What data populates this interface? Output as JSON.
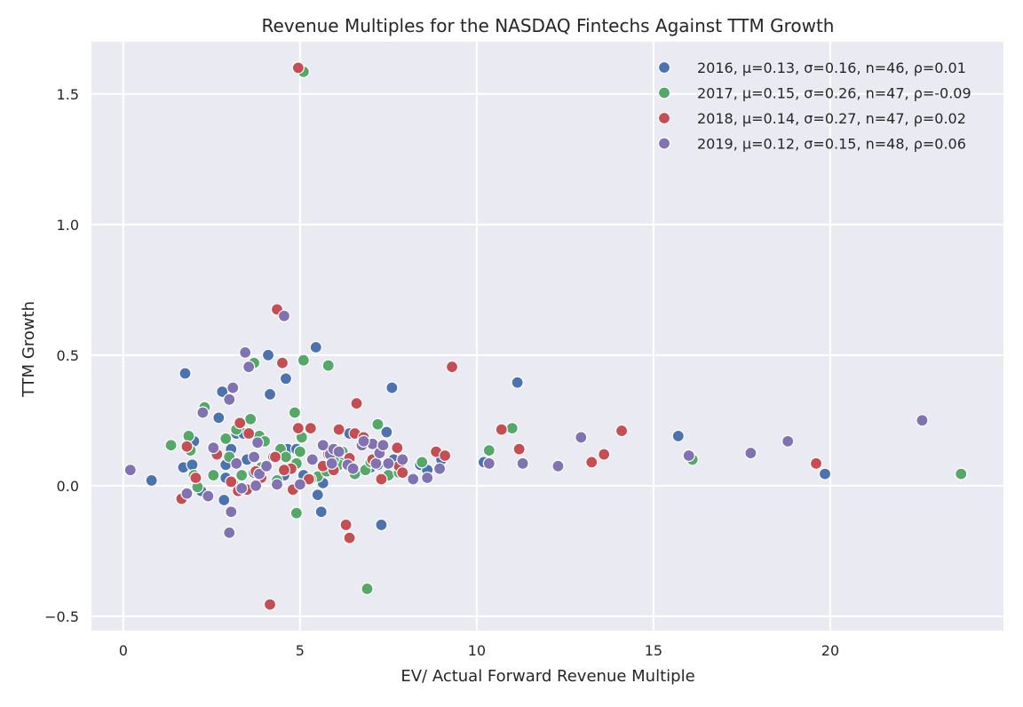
{
  "chart_data": {
    "type": "scatter",
    "title": "Revenue Multiples for the NASDAQ Fintechs Against TTM Growth",
    "xlabel": "EV/ Actual Forward Revenue Multiple",
    "ylabel": "TTM Growth",
    "xlim": [
      -0.9,
      24.9
    ],
    "ylim": [
      -0.555,
      1.7
    ],
    "x_ticks": [
      0,
      5,
      10,
      15,
      20
    ],
    "x_tick_labels": [
      "0",
      "5",
      "10",
      "15",
      "20"
    ],
    "y_ticks": [
      -0.5,
      0.0,
      0.5,
      1.0,
      1.5
    ],
    "y_tick_labels": [
      "−0.5",
      "0.0",
      "0.5",
      "1.0",
      "1.5"
    ],
    "grid": true,
    "legend_position": "top-right",
    "series": [
      {
        "name": "2016, μ=0.13, σ=0.16, n=46, ρ=0.01",
        "color": "#4c72b0",
        "points": [
          [
            0.8,
            0.02
          ],
          [
            1.7,
            0.07
          ],
          [
            1.75,
            0.43
          ],
          [
            1.95,
            0.08
          ],
          [
            2.0,
            0.17
          ],
          [
            2.2,
            -0.02
          ],
          [
            2.7,
            0.26
          ],
          [
            2.8,
            0.36
          ],
          [
            2.9,
            0.08
          ],
          [
            2.9,
            0.03
          ],
          [
            3.05,
            0.14
          ],
          [
            3.2,
            0.2
          ],
          [
            3.4,
            0.2
          ],
          [
            2.85,
            -0.055
          ],
          [
            3.5,
            0.1
          ],
          [
            3.7,
            0.05
          ],
          [
            4.1,
            0.5
          ],
          [
            4.15,
            0.35
          ],
          [
            4.25,
            0.11
          ],
          [
            4.5,
            0.12
          ],
          [
            4.55,
            0.04
          ],
          [
            4.6,
            0.41
          ],
          [
            4.65,
            0.14
          ],
          [
            4.9,
            0.14
          ],
          [
            5.1,
            0.04
          ],
          [
            5.45,
            0.53
          ],
          [
            5.5,
            -0.035
          ],
          [
            5.6,
            -0.1
          ],
          [
            5.65,
            0.01
          ],
          [
            6.0,
            0.07
          ],
          [
            6.4,
            0.2
          ],
          [
            6.6,
            0.05
          ],
          [
            7.0,
            0.07
          ],
          [
            7.2,
            0.08
          ],
          [
            7.3,
            -0.15
          ],
          [
            7.45,
            0.205
          ],
          [
            7.6,
            0.375
          ],
          [
            7.65,
            0.1
          ],
          [
            8.4,
            0.08
          ],
          [
            8.6,
            0.06
          ],
          [
            9.0,
            0.1
          ],
          [
            10.2,
            0.09
          ],
          [
            11.15,
            0.395
          ],
          [
            15.7,
            0.19
          ],
          [
            19.85,
            0.045
          ],
          [
            6.2,
            0.09
          ]
        ]
      },
      {
        "name": "2017, μ=0.15, σ=0.26, n=47, ρ=-0.09",
        "color": "#55a868",
        "points": [
          [
            1.35,
            0.155
          ],
          [
            1.85,
            0.19
          ],
          [
            1.9,
            0.135
          ],
          [
            2.0,
            0.04
          ],
          [
            2.3,
            0.3
          ],
          [
            2.55,
            0.04
          ],
          [
            2.9,
            0.18
          ],
          [
            3.1,
            0.01
          ],
          [
            3.2,
            0.215
          ],
          [
            3.35,
            0.04
          ],
          [
            3.6,
            0.255
          ],
          [
            3.7,
            0.47
          ],
          [
            3.85,
            0.19
          ],
          [
            4.0,
            0.17
          ],
          [
            4.45,
            0.14
          ],
          [
            4.6,
            0.11
          ],
          [
            4.85,
            0.28
          ],
          [
            4.9,
            0.085
          ],
          [
            4.9,
            -0.105
          ],
          [
            5.0,
            0.13
          ],
          [
            5.05,
            0.185
          ],
          [
            5.1,
            0.48
          ],
          [
            5.1,
            1.585
          ],
          [
            5.5,
            0.035
          ],
          [
            5.75,
            0.055
          ],
          [
            5.8,
            0.46
          ],
          [
            6.2,
            0.13
          ],
          [
            6.55,
            0.045
          ],
          [
            6.85,
            0.06
          ],
          [
            6.9,
            -0.395
          ],
          [
            7.2,
            0.235
          ],
          [
            7.5,
            0.04
          ],
          [
            8.45,
            0.09
          ],
          [
            10.35,
            0.135
          ],
          [
            11.0,
            0.22
          ],
          [
            16.1,
            0.1
          ],
          [
            23.7,
            0.045
          ],
          [
            5.3,
            0.025
          ],
          [
            6.1,
            0.08
          ],
          [
            7.8,
            0.05
          ],
          [
            3.9,
            0.07
          ],
          [
            2.1,
            -0.005
          ],
          [
            4.35,
            0.02
          ],
          [
            5.95,
            0.1
          ],
          [
            7.0,
            0.09
          ],
          [
            8.2,
            0.03
          ],
          [
            3.0,
            0.11
          ]
        ]
      },
      {
        "name": "2018, μ=0.14, σ=0.27, n=47, ρ=0.02",
        "color": "#c44e52",
        "points": [
          [
            1.65,
            -0.05
          ],
          [
            1.8,
            0.15
          ],
          [
            2.05,
            0.03
          ],
          [
            2.65,
            0.12
          ],
          [
            3.05,
            0.015
          ],
          [
            3.25,
            -0.02
          ],
          [
            3.3,
            0.24
          ],
          [
            3.5,
            -0.015
          ],
          [
            3.55,
            0.2
          ],
          [
            3.75,
            0.055
          ],
          [
            4.15,
            -0.455
          ],
          [
            4.3,
            0.11
          ],
          [
            4.35,
            0.675
          ],
          [
            4.5,
            0.47
          ],
          [
            4.75,
            0.065
          ],
          [
            4.8,
            -0.015
          ],
          [
            4.95,
            0.22
          ],
          [
            4.95,
            1.6
          ],
          [
            5.25,
            0.025
          ],
          [
            5.3,
            0.22
          ],
          [
            5.65,
            0.075
          ],
          [
            6.1,
            0.215
          ],
          [
            6.3,
            -0.15
          ],
          [
            6.35,
            0.075
          ],
          [
            6.4,
            -0.2
          ],
          [
            6.4,
            0.105
          ],
          [
            6.55,
            0.2
          ],
          [
            6.6,
            0.315
          ],
          [
            6.8,
            0.185
          ],
          [
            7.3,
            0.025
          ],
          [
            7.75,
            0.145
          ],
          [
            7.8,
            0.075
          ],
          [
            7.9,
            0.05
          ],
          [
            8.85,
            0.13
          ],
          [
            9.1,
            0.115
          ],
          [
            9.3,
            0.455
          ],
          [
            10.7,
            0.215
          ],
          [
            11.2,
            0.14
          ],
          [
            13.25,
            0.09
          ],
          [
            13.6,
            0.12
          ],
          [
            14.1,
            0.21
          ],
          [
            19.6,
            0.085
          ],
          [
            3.9,
            0.03
          ],
          [
            5.8,
            0.12
          ],
          [
            7.05,
            0.1
          ],
          [
            4.55,
            0.06
          ],
          [
            5.95,
            0.06
          ]
        ]
      },
      {
        "name": "2019, μ=0.12, σ=0.15, n=48, ρ=0.06",
        "color": "#8172b2",
        "points": [
          [
            0.2,
            0.06
          ],
          [
            1.8,
            -0.03
          ],
          [
            2.25,
            0.28
          ],
          [
            2.4,
            -0.04
          ],
          [
            2.55,
            0.145
          ],
          [
            3.0,
            -0.18
          ],
          [
            3.0,
            0.33
          ],
          [
            3.05,
            -0.1
          ],
          [
            3.1,
            0.375
          ],
          [
            3.2,
            0.085
          ],
          [
            3.35,
            -0.01
          ],
          [
            3.45,
            0.51
          ],
          [
            3.55,
            0.455
          ],
          [
            3.7,
            0.11
          ],
          [
            3.75,
            0.0
          ],
          [
            3.8,
            0.165
          ],
          [
            3.85,
            0.045
          ],
          [
            4.05,
            0.075
          ],
          [
            4.35,
            0.005
          ],
          [
            4.55,
            0.65
          ],
          [
            5.0,
            0.005
          ],
          [
            5.35,
            0.1
          ],
          [
            5.65,
            0.155
          ],
          [
            5.85,
            0.12
          ],
          [
            5.9,
            0.085
          ],
          [
            5.95,
            0.14
          ],
          [
            6.1,
            0.13
          ],
          [
            6.35,
            0.08
          ],
          [
            6.5,
            0.065
          ],
          [
            6.75,
            0.155
          ],
          [
            7.05,
            0.16
          ],
          [
            7.15,
            0.085
          ],
          [
            7.25,
            0.125
          ],
          [
            7.35,
            0.155
          ],
          [
            7.5,
            0.085
          ],
          [
            8.2,
            0.025
          ],
          [
            8.6,
            0.03
          ],
          [
            8.95,
            0.065
          ],
          [
            10.35,
            0.085
          ],
          [
            11.3,
            0.085
          ],
          [
            12.3,
            0.075
          ],
          [
            12.95,
            0.185
          ],
          [
            16.0,
            0.115
          ],
          [
            17.75,
            0.125
          ],
          [
            18.8,
            0.17
          ],
          [
            22.6,
            0.25
          ],
          [
            6.8,
            0.17
          ],
          [
            7.9,
            0.1
          ]
        ]
      }
    ]
  }
}
